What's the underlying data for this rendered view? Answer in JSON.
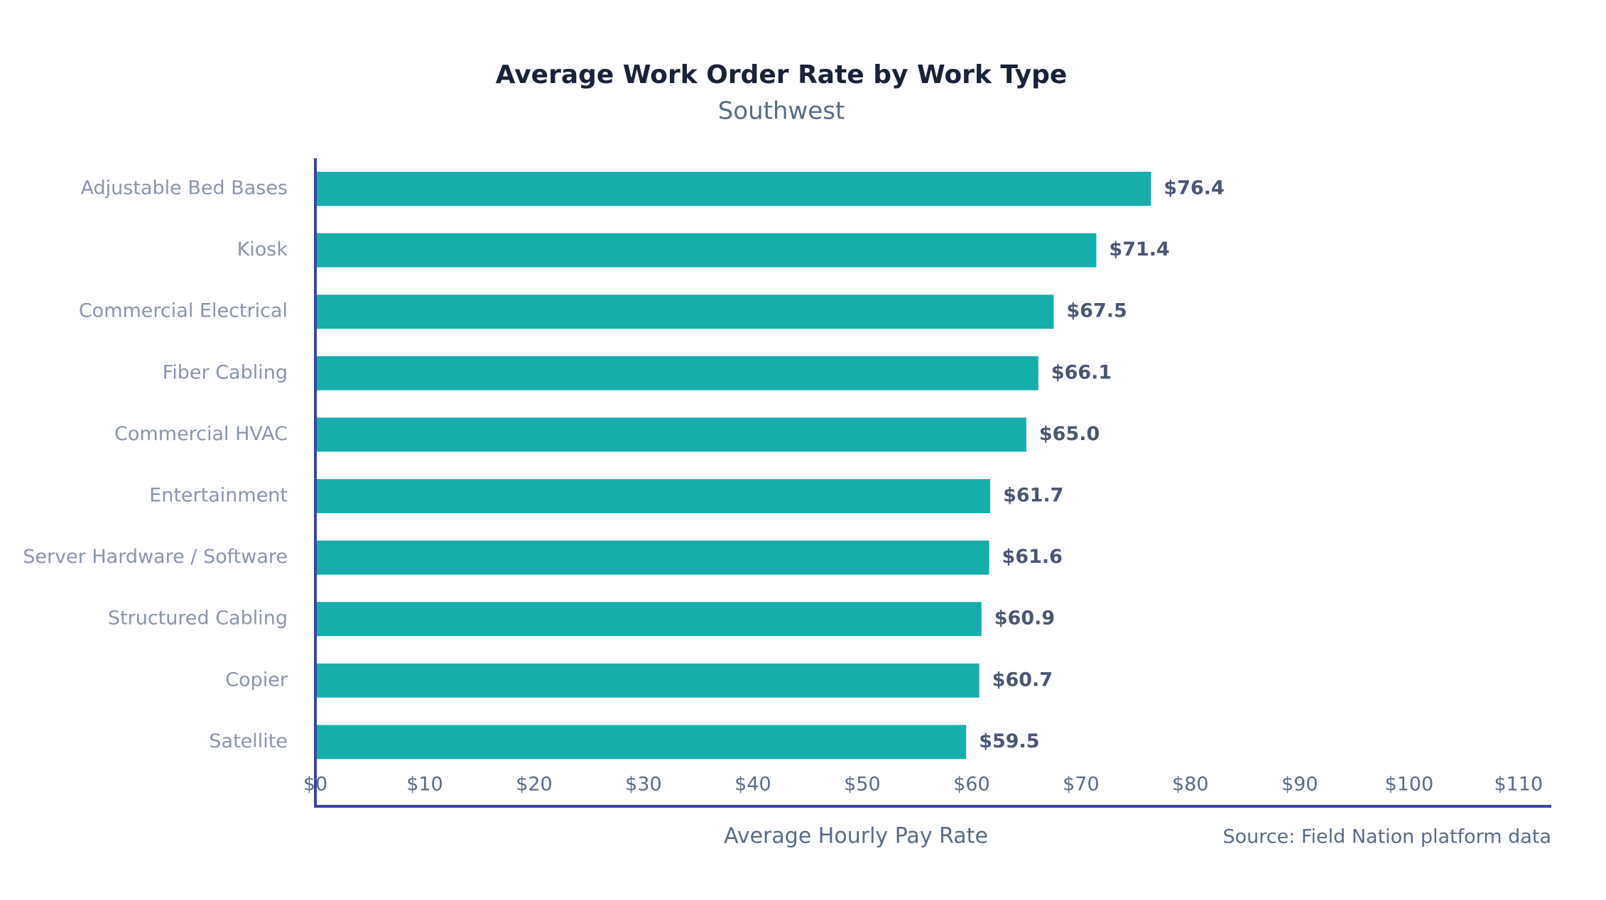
{
  "chart_data": {
    "type": "bar",
    "orientation": "horizontal",
    "title": "Average Work Order Rate by Work Type",
    "subtitle": "Southwest",
    "x_label": "Average Hourly Pay Rate",
    "source": "Source: Field Nation platform data",
    "categories": [
      "Adjustable Bed Bases",
      "Kiosk",
      "Commercial Electrical",
      "Fiber Cabling",
      "Commercial HVAC",
      "Entertainment",
      "Server Hardware / Software",
      "Structured Cabling",
      "Copier",
      "Satellite"
    ],
    "values": [
      76.4,
      71.4,
      67.5,
      66.1,
      65.0,
      61.7,
      61.6,
      60.9,
      60.7,
      59.5
    ],
    "value_labels": [
      "$76.4",
      "$71.4",
      "$67.5",
      "$66.1",
      "$65.0",
      "$61.7",
      "$61.6",
      "$60.9",
      "$60.7",
      "$59.5"
    ],
    "color": "#15aeab",
    "xlim": [
      0,
      113
    ],
    "xticks": [
      {
        "value": 0,
        "label": "$0"
      },
      {
        "value": 10,
        "label": "$10"
      },
      {
        "value": 20,
        "label": "$20"
      },
      {
        "value": 30,
        "label": "$30"
      },
      {
        "value": 40,
        "label": "$40"
      },
      {
        "value": 50,
        "label": "$50"
      },
      {
        "value": 60,
        "label": "$60"
      },
      {
        "value": 70,
        "label": "$70"
      },
      {
        "value": 80,
        "label": "$80"
      },
      {
        "value": 90,
        "label": "$90"
      },
      {
        "value": 100,
        "label": "$100"
      },
      {
        "value": 110,
        "label": "$110"
      }
    ],
    "grid": false
  }
}
